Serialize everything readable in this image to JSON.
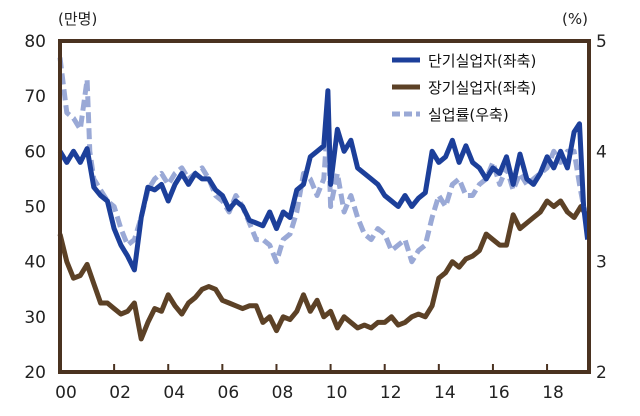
{
  "chart_data": {
    "type": "line",
    "left_unit": "(만명)",
    "right_unit": "(%)",
    "xlim": [
      2000.0,
      2019.55
    ],
    "ylim_left": [
      20,
      80
    ],
    "ylim_right": [
      2,
      5
    ],
    "x_ticks": [
      {
        "value": 2000.0,
        "label": "00"
      },
      {
        "value": 2002.0,
        "label": "02"
      },
      {
        "value": 2004.0,
        "label": "04"
      },
      {
        "value": 2006.0,
        "label": "06"
      },
      {
        "value": 2008.0,
        "label": "08"
      },
      {
        "value": 2010.0,
        "label": "10"
      },
      {
        "value": 2012.0,
        "label": "12"
      },
      {
        "value": 2014.0,
        "label": "14"
      },
      {
        "value": 2016.0,
        "label": "16"
      },
      {
        "value": 2018.0,
        "label": "18"
      }
    ],
    "y_ticks_left": [
      80,
      70,
      60,
      50,
      40,
      30,
      20
    ],
    "y_ticks_right": [
      5,
      4,
      3,
      2
    ],
    "legend_position": "top-right",
    "colors": {
      "short_term": "#1c3f9a",
      "long_term": "#5c4126",
      "rate": "#9aa9d6",
      "frame": "#4a3220"
    },
    "series": [
      {
        "name": "단기실업자(좌축)",
        "axis": "left",
        "style": "solid",
        "x": [
          2000.0,
          2000.25,
          2000.5,
          2000.75,
          2001.0,
          2001.25,
          2001.5,
          2001.75,
          2002.0,
          2002.25,
          2002.5,
          2002.75,
          2003.0,
          2003.25,
          2003.5,
          2003.75,
          2004.0,
          2004.25,
          2004.5,
          2004.75,
          2005.0,
          2005.25,
          2005.5,
          2005.75,
          2006.0,
          2006.25,
          2006.5,
          2006.75,
          2007.0,
          2007.25,
          2007.5,
          2007.75,
          2008.0,
          2008.25,
          2008.5,
          2008.75,
          2009.0,
          2009.25,
          2009.5,
          2009.75,
          2009.9,
          2010.0,
          2010.25,
          2010.5,
          2010.75,
          2011.0,
          2011.25,
          2011.5,
          2011.75,
          2012.0,
          2012.25,
          2012.5,
          2012.75,
          2013.0,
          2013.25,
          2013.5,
          2013.75,
          2014.0,
          2014.25,
          2014.5,
          2014.75,
          2015.0,
          2015.25,
          2015.5,
          2015.75,
          2016.0,
          2016.25,
          2016.5,
          2016.75,
          2017.0,
          2017.25,
          2017.5,
          2017.75,
          2018.0,
          2018.25,
          2018.5,
          2018.75,
          2019.0,
          2019.2,
          2019.35,
          2019.5
        ],
        "values": [
          60,
          58,
          60,
          58,
          60.5,
          53.5,
          52,
          51,
          46,
          43,
          41,
          38.5,
          48,
          53.5,
          53,
          54,
          51,
          54,
          56,
          54,
          56,
          55,
          55,
          53,
          52,
          49.5,
          51,
          50,
          47.5,
          47,
          46.5,
          49,
          46,
          49,
          48,
          53,
          54,
          59,
          60,
          61,
          71,
          54,
          64,
          60,
          62,
          57,
          56,
          55,
          54,
          52,
          51,
          50,
          52,
          50,
          51.5,
          52.5,
          60,
          58,
          59,
          62,
          58,
          61,
          58,
          57,
          55,
          57,
          56,
          59,
          54,
          59.5,
          55,
          54,
          56,
          59,
          57,
          60,
          57,
          63.5,
          65,
          50,
          44
        ]
      },
      {
        "name": "장기실업자(좌축)",
        "axis": "left",
        "style": "solid",
        "x": [
          2000.0,
          2000.25,
          2000.5,
          2000.75,
          2001.0,
          2001.25,
          2001.5,
          2001.75,
          2002.0,
          2002.25,
          2002.5,
          2002.75,
          2003.0,
          2003.25,
          2003.5,
          2003.75,
          2004.0,
          2004.25,
          2004.5,
          2004.75,
          2005.0,
          2005.25,
          2005.5,
          2005.75,
          2006.0,
          2006.25,
          2006.5,
          2006.75,
          2007.0,
          2007.25,
          2007.5,
          2007.75,
          2008.0,
          2008.25,
          2008.5,
          2008.75,
          2009.0,
          2009.25,
          2009.5,
          2009.75,
          2010.0,
          2010.25,
          2010.5,
          2010.75,
          2011.0,
          2011.25,
          2011.5,
          2011.75,
          2012.0,
          2012.25,
          2012.5,
          2012.75,
          2013.0,
          2013.25,
          2013.5,
          2013.75,
          2014.0,
          2014.25,
          2014.5,
          2014.75,
          2015.0,
          2015.25,
          2015.5,
          2015.75,
          2016.0,
          2016.25,
          2016.5,
          2016.75,
          2017.0,
          2017.25,
          2017.5,
          2017.75,
          2018.0,
          2018.25,
          2018.5,
          2018.75,
          2019.0,
          2019.25,
          2019.5
        ],
        "values": [
          45,
          40,
          37,
          37.5,
          39.5,
          36,
          32.5,
          32.5,
          31.5,
          30.5,
          31,
          32.5,
          26,
          29,
          31.5,
          31,
          34,
          32,
          30.5,
          32.5,
          33.5,
          35,
          35.5,
          35,
          33,
          32.5,
          32,
          31.5,
          32,
          32,
          29,
          30,
          27.5,
          30,
          29.5,
          31,
          34,
          31,
          33,
          30,
          31,
          28,
          30,
          29,
          28,
          28.5,
          28,
          29,
          29,
          30,
          28.5,
          29,
          30,
          30.5,
          30,
          32,
          37,
          38,
          40,
          39,
          40.5,
          41,
          42,
          45,
          44,
          43,
          43,
          48.5,
          46,
          47,
          48,
          49,
          51,
          50,
          51,
          49,
          48,
          50,
          48
        ]
      },
      {
        "name": "실업률(우축)",
        "axis": "right",
        "style": "dashed",
        "x": [
          2000.0,
          2000.1,
          2000.25,
          2000.5,
          2000.75,
          2001.0,
          2001.1,
          2001.25,
          2001.5,
          2001.75,
          2002.0,
          2002.25,
          2002.5,
          2002.75,
          2003.0,
          2003.25,
          2003.5,
          2003.75,
          2004.0,
          2004.25,
          2004.5,
          2004.75,
          2005.0,
          2005.25,
          2005.5,
          2005.75,
          2006.0,
          2006.25,
          2006.5,
          2006.75,
          2007.0,
          2007.25,
          2007.5,
          2007.75,
          2008.0,
          2008.25,
          2008.5,
          2008.75,
          2009.0,
          2009.25,
          2009.5,
          2009.75,
          2009.9,
          2010.0,
          2010.25,
          2010.5,
          2010.75,
          2011.0,
          2011.25,
          2011.5,
          2011.75,
          2012.0,
          2012.25,
          2012.5,
          2012.75,
          2013.0,
          2013.25,
          2013.5,
          2013.75,
          2014.0,
          2014.25,
          2014.5,
          2014.75,
          2015.0,
          2015.25,
          2015.5,
          2015.75,
          2016.0,
          2016.25,
          2016.5,
          2016.75,
          2017.0,
          2017.25,
          2017.5,
          2017.75,
          2018.0,
          2018.25,
          2018.5,
          2018.75,
          2019.0,
          2019.2,
          2019.35,
          2019.5
        ],
        "values": [
          4.85,
          4.65,
          4.35,
          4.3,
          4.2,
          4.65,
          4.0,
          3.75,
          3.65,
          3.55,
          3.5,
          3.3,
          3.15,
          3.2,
          3.4,
          3.65,
          3.75,
          3.8,
          3.7,
          3.8,
          3.85,
          3.75,
          3.8,
          3.85,
          3.75,
          3.6,
          3.55,
          3.45,
          3.6,
          3.5,
          3.35,
          3.2,
          3.2,
          3.15,
          3.0,
          3.2,
          3.25,
          3.45,
          3.8,
          3.75,
          3.6,
          3.75,
          4.3,
          3.5,
          3.8,
          3.45,
          3.6,
          3.4,
          3.25,
          3.2,
          3.3,
          3.25,
          3.1,
          3.15,
          3.2,
          3.0,
          3.1,
          3.15,
          3.4,
          3.6,
          3.5,
          3.7,
          3.75,
          3.6,
          3.6,
          3.7,
          3.75,
          3.9,
          3.7,
          3.85,
          3.65,
          3.8,
          3.7,
          3.75,
          3.8,
          3.85,
          4.0,
          3.9,
          4.0,
          4.0,
          3.7,
          3.5,
          3.4
        ]
      }
    ]
  }
}
